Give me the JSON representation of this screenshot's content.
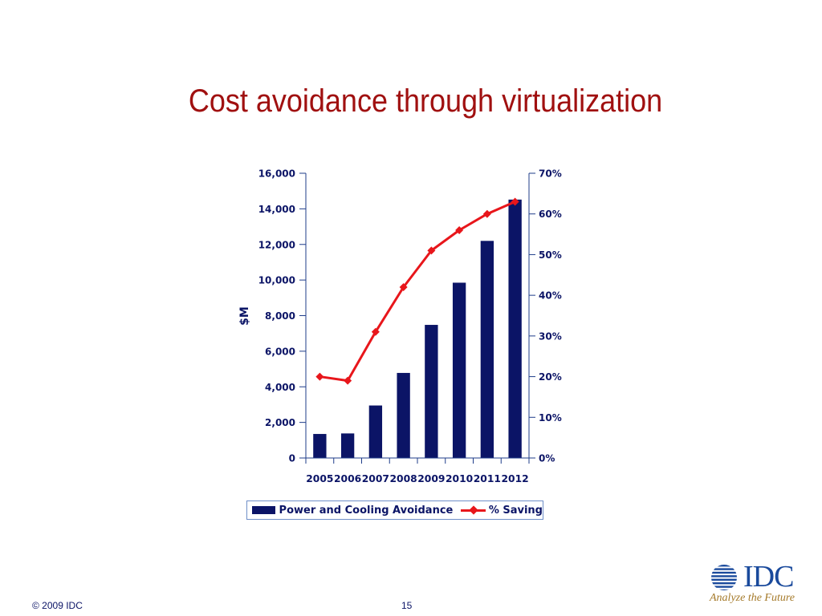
{
  "slide": {
    "title": "Cost avoidance through virtualization",
    "footer_copyright": "© 2009 IDC",
    "page_number": "15"
  },
  "logo": {
    "text": "IDC",
    "tagline": "Analyze the Future"
  },
  "colors": {
    "title": "#a01010",
    "bar": "#0b1466",
    "line": "#e8161b",
    "axis_text": "#0b1466",
    "legend_border": "#6f8fc8"
  },
  "chart_data": {
    "type": "bar",
    "title": "",
    "xlabel": "",
    "ylabel": "$M",
    "categories": [
      "2005",
      "2006",
      "2007",
      "2008",
      "2009",
      "2010",
      "2011",
      "2012"
    ],
    "ylim": [
      0,
      16000
    ],
    "yticks": [
      "0",
      "2,000",
      "4,000",
      "6,000",
      "8,000",
      "10,000",
      "12,000",
      "14,000",
      "16,000"
    ],
    "y2lim": [
      0,
      0.7
    ],
    "y2ticks": [
      "0%",
      "10%",
      "20%",
      "30%",
      "40%",
      "50%",
      "60%",
      "70%"
    ],
    "series": [
      {
        "name": "Power and Cooling Avoidance",
        "type": "bar",
        "axis": "left",
        "values": [
          1350,
          1380,
          2950,
          4780,
          7480,
          9850,
          12200,
          14520
        ]
      },
      {
        "name": "% Saving",
        "type": "line",
        "axis": "right",
        "marker": "diamond",
        "values": [
          0.2,
          0.19,
          0.31,
          0.42,
          0.51,
          0.56,
          0.6,
          0.63
        ]
      }
    ],
    "legend_position": "bottom",
    "grid": false
  }
}
